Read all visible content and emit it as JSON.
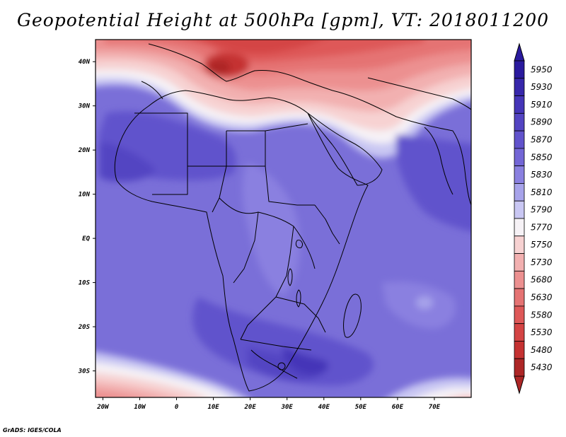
{
  "title": "Geopotential Height at 500hPa [gpm], VT: 2018011200",
  "credit": "GrADS: IGES/COLA",
  "chart_data": {
    "type": "heatmap",
    "title": "Geopotential Height at 500hPa [gpm], VT: 2018011200",
    "xlim": [
      -22,
      80
    ],
    "ylim": [
      -36,
      45
    ],
    "x_ticks": [
      {
        "value": -20,
        "label": "20W"
      },
      {
        "value": -10,
        "label": "10W"
      },
      {
        "value": 0,
        "label": "0"
      },
      {
        "value": 10,
        "label": "10E"
      },
      {
        "value": 20,
        "label": "20E"
      },
      {
        "value": 30,
        "label": "30E"
      },
      {
        "value": 40,
        "label": "40E"
      },
      {
        "value": 50,
        "label": "50E"
      },
      {
        "value": 60,
        "label": "60E"
      },
      {
        "value": 70,
        "label": "70E"
      }
    ],
    "y_ticks": [
      {
        "value": 40,
        "label": "40N"
      },
      {
        "value": 30,
        "label": "30N"
      },
      {
        "value": 20,
        "label": "20N"
      },
      {
        "value": 10,
        "label": "10N"
      },
      {
        "value": 0,
        "label": "EQ"
      },
      {
        "value": -10,
        "label": "10S"
      },
      {
        "value": -20,
        "label": "20S"
      },
      {
        "value": -30,
        "label": "30S"
      }
    ],
    "colorbar": [
      {
        "label": "5950",
        "color": "#2a1a9e"
      },
      {
        "label": "5930",
        "color": "#3727ab"
      },
      {
        "label": "5910",
        "color": "#4535b8"
      },
      {
        "label": "5890",
        "color": "#5344c2"
      },
      {
        "label": "5870",
        "color": "#6153cc"
      },
      {
        "label": "5850",
        "color": "#7366d6"
      },
      {
        "label": "5830",
        "color": "#8a80e0"
      },
      {
        "label": "5810",
        "color": "#a7a3ea"
      },
      {
        "label": "5790",
        "color": "#c9c7f3"
      },
      {
        "label": "5770",
        "color": "#f6f2f6"
      },
      {
        "label": "5750",
        "color": "#f7d2d2"
      },
      {
        "label": "5730",
        "color": "#f2b0b0"
      },
      {
        "label": "5680",
        "color": "#ec9090"
      },
      {
        "label": "5630",
        "color": "#e57373"
      },
      {
        "label": "5580",
        "color": "#de5858"
      },
      {
        "label": "5530",
        "color": "#d44444"
      },
      {
        "label": "5480",
        "color": "#c53232"
      },
      {
        "label": "5430",
        "color": "#ad2626"
      }
    ]
  }
}
